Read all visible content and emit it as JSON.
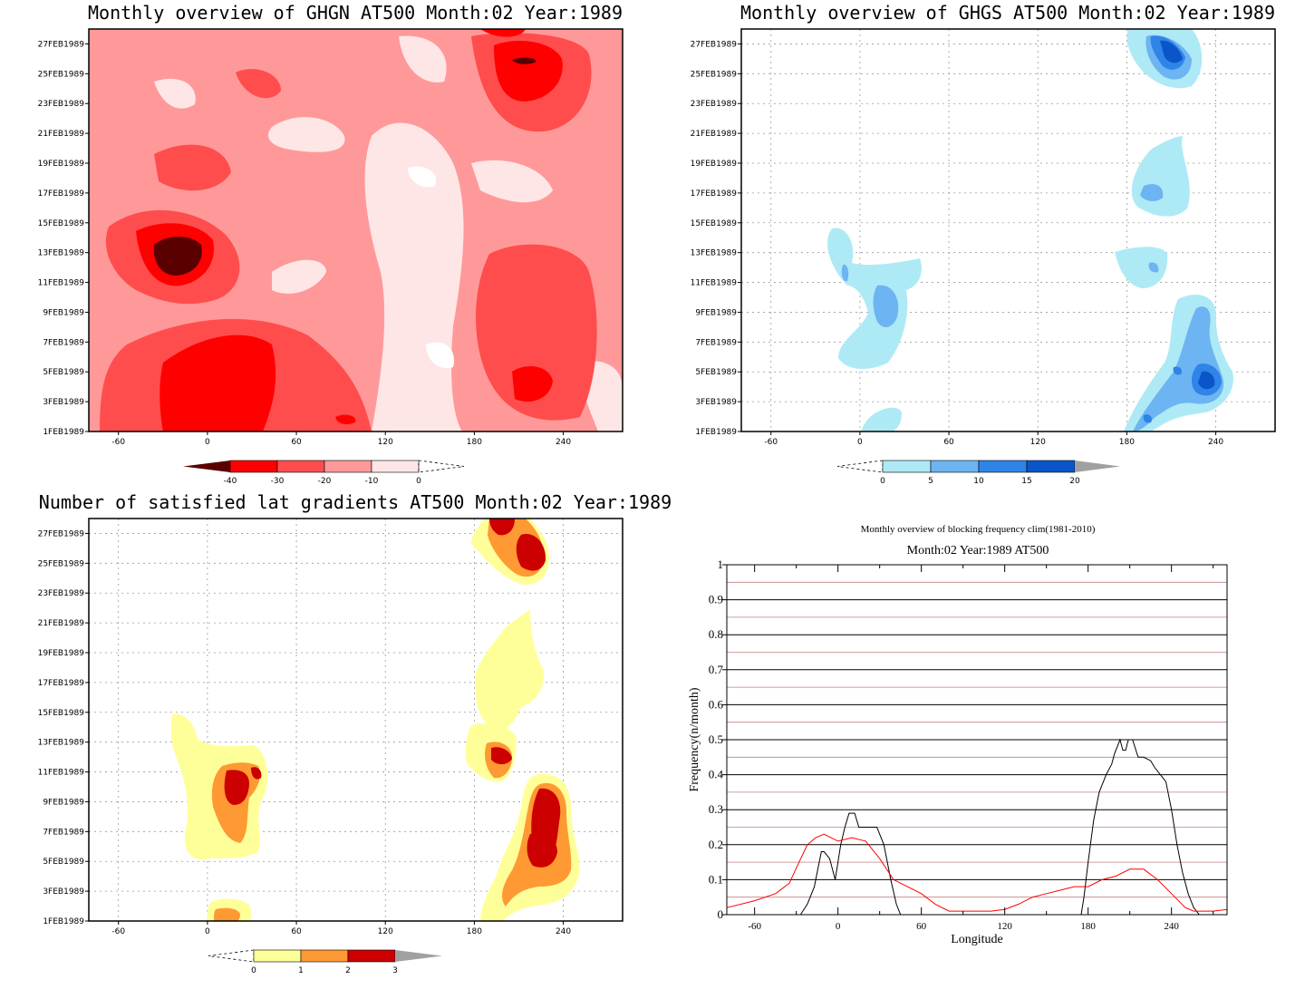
{
  "panels": {
    "ghgn": {
      "title": "Monthly overview of GHGN AT500 Month:02 Year:1989",
      "colorbar": {
        "labels": [
          "-40",
          "-30",
          "-20",
          "-10",
          "0"
        ],
        "colors": [
          "#5a0000",
          "#ff0000",
          "#ff4d4d",
          "#ff9999",
          "#ffe6e6",
          "#ffffff"
        ]
      }
    },
    "ghgs": {
      "title": "Monthly overview of GHGS AT500 Month:02 Year:1989",
      "colorbar": {
        "labels": [
          "0",
          "5",
          "10",
          "15",
          "20"
        ],
        "colors": [
          "#ffffff",
          "#aeeaf5",
          "#6db4f2",
          "#2f84e8",
          "#0a55c8",
          "#a0a0a0"
        ]
      }
    },
    "lat": {
      "title": "Number of satisfied lat gradients AT500 Month:02 Year:1989",
      "colorbar": {
        "labels": [
          "0",
          "1",
          "2",
          "3"
        ],
        "colors": [
          "#ffffff",
          "#ffff99",
          "#ff9933",
          "#cc0000",
          "#a0a0a0"
        ]
      }
    },
    "freq": {
      "title1": "Monthly overview of blocking frequency clim(1981-2010)",
      "title2": "Month:02 Year:1989  AT500"
    }
  },
  "common": {
    "date_labels": [
      "1FEB1989",
      "3FEB1989",
      "5FEB1989",
      "7FEB1989",
      "9FEB1989",
      "11FEB1989",
      "13FEB1989",
      "15FEB1989",
      "17FEB1989",
      "19FEB1989",
      "21FEB1989",
      "23FEB1989",
      "25FEB1989",
      "27FEB1989"
    ],
    "lon_labels": [
      "-60",
      "0",
      "60",
      "120",
      "180",
      "240"
    ]
  },
  "chart_data": [
    {
      "type": "heatmap",
      "title": "Monthly overview of GHGN AT500 Month:02 Year:1989",
      "x_ticks": [
        -60,
        0,
        60,
        120,
        180,
        240
      ],
      "y_ticks": [
        "1FEB1989",
        "3FEB1989",
        "5FEB1989",
        "7FEB1989",
        "9FEB1989",
        "11FEB1989",
        "13FEB1989",
        "15FEB1989",
        "17FEB1989",
        "19FEB1989",
        "21FEB1989",
        "23FEB1989",
        "25FEB1989",
        "27FEB1989"
      ],
      "xlim": [
        -80,
        280
      ],
      "ylim": [
        "1FEB1989",
        "28FEB1989"
      ],
      "levels": [
        -40,
        -30,
        -20,
        -10,
        0
      ],
      "grid": false
    },
    {
      "type": "heatmap",
      "title": "Monthly overview of GHGS AT500 Month:02 Year:1989",
      "x_ticks": [
        -60,
        0,
        60,
        120,
        180,
        240
      ],
      "y_ticks": [
        "1FEB1989",
        "3FEB1989",
        "5FEB1989",
        "7FEB1989",
        "9FEB1989",
        "11FEB1989",
        "13FEB1989",
        "15FEB1989",
        "17FEB1989",
        "19FEB1989",
        "21FEB1989",
        "23FEB1989",
        "25FEB1989",
        "27FEB1989"
      ],
      "xlim": [
        -80,
        280
      ],
      "ylim": [
        "1FEB1989",
        "28FEB1989"
      ],
      "levels": [
        0,
        5,
        10,
        15,
        20
      ],
      "grid": true
    },
    {
      "type": "heatmap",
      "title": "Number of satisfied lat gradients AT500 Month:02 Year:1989",
      "x_ticks": [
        -60,
        0,
        60,
        120,
        180,
        240
      ],
      "y_ticks": [
        "1FEB1989",
        "3FEB1989",
        "5FEB1989",
        "7FEB1989",
        "9FEB1989",
        "11FEB1989",
        "13FEB1989",
        "15FEB1989",
        "17FEB1989",
        "19FEB1989",
        "21FEB1989",
        "23FEB1989",
        "25FEB1989",
        "27FEB1989"
      ],
      "xlim": [
        -80,
        280
      ],
      "ylim": [
        "1FEB1989",
        "28FEB1989"
      ],
      "levels": [
        0,
        1,
        2,
        3
      ],
      "grid": true
    },
    {
      "type": "line",
      "title": "Monthly overview of blocking frequency clim(1981-2010)",
      "subtitle": "Month:02 Year:1989  AT500",
      "xlabel": "Longitude",
      "ylabel": "Frequency(n/month)",
      "xlim": [
        -80,
        280
      ],
      "ylim": [
        0,
        1
      ],
      "x_ticks": [
        -60,
        0,
        60,
        120,
        180,
        240
      ],
      "y_ticks": [
        0,
        0.1,
        0.2,
        0.3,
        0.4,
        0.5,
        0.6,
        0.7,
        0.8,
        0.9,
        1
      ],
      "grid": true,
      "series": [
        {
          "color": "#000000",
          "x": [
            -80,
            -27,
            -22,
            -17,
            -14,
            -12,
            -10,
            -6,
            -2,
            2,
            5,
            8,
            12,
            15,
            18,
            23,
            28,
            33,
            38,
            42,
            45,
            175,
            177,
            180,
            184,
            188,
            193,
            197,
            199,
            201,
            203,
            205,
            207,
            209,
            212,
            216,
            220,
            225,
            228,
            232,
            236,
            240,
            244,
            248,
            252,
            256,
            260,
            264,
            280
          ],
          "y": [
            0,
            0,
            0.03,
            0.08,
            0.14,
            0.18,
            0.18,
            0.16,
            0.1,
            0.2,
            0.25,
            0.29,
            0.29,
            0.25,
            0.25,
            0.25,
            0.25,
            0.2,
            0.1,
            0.03,
            0,
            0,
            0.05,
            0.15,
            0.27,
            0.35,
            0.4,
            0.43,
            0.46,
            0.48,
            0.5,
            0.47,
            0.47,
            0.5,
            0.5,
            0.45,
            0.45,
            0.44,
            0.42,
            0.4,
            0.38,
            0.3,
            0.2,
            0.12,
            0.06,
            0.02,
            0,
            0,
            0
          ]
        },
        {
          "color": "#ff0000",
          "x": [
            -80,
            -60,
            -45,
            -35,
            -28,
            -22,
            -16,
            -10,
            -5,
            0,
            10,
            20,
            30,
            40,
            50,
            60,
            70,
            80,
            90,
            100,
            110,
            120,
            130,
            140,
            150,
            160,
            170,
            180,
            190,
            200,
            210,
            220,
            230,
            240,
            250,
            256,
            260,
            270,
            280
          ],
          "y": [
            0.02,
            0.04,
            0.06,
            0.09,
            0.15,
            0.2,
            0.22,
            0.23,
            0.22,
            0.21,
            0.22,
            0.21,
            0.16,
            0.1,
            0.08,
            0.06,
            0.03,
            0.01,
            0.01,
            0.01,
            0.01,
            0.015,
            0.03,
            0.05,
            0.06,
            0.07,
            0.08,
            0.08,
            0.1,
            0.11,
            0.13,
            0.13,
            0.1,
            0.06,
            0.02,
            0.01,
            0.01,
            0.01,
            0.015
          ]
        }
      ]
    }
  ]
}
